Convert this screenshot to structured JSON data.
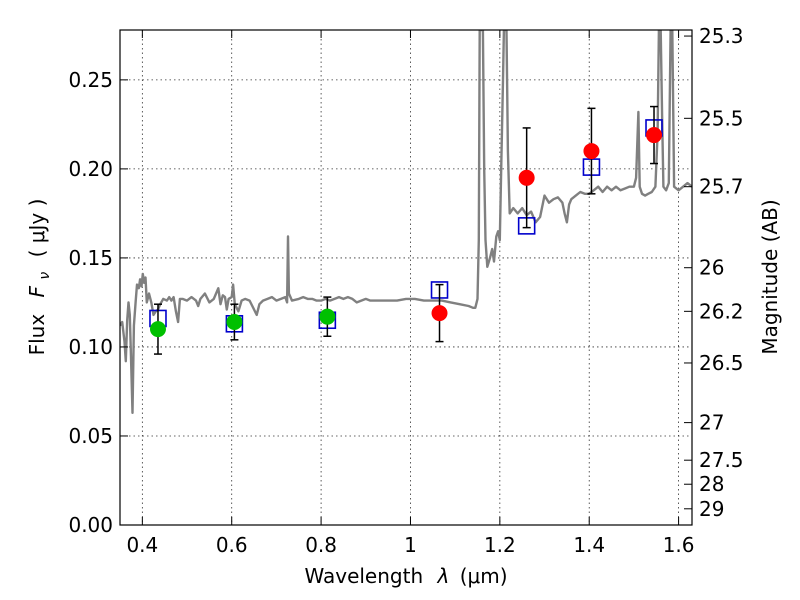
{
  "chart_data": {
    "type": "scatter",
    "xlabel_text": "Wavelength",
    "xlabel_symbol": "λ",
    "xlabel_unit": "(μm)",
    "ylabel_text": "Flux",
    "ylabel_symbol": "F",
    "ylabel_subscript": "ν",
    "ylabel_unit": "( μJy )",
    "y2label": "Magnitude (AB)",
    "xlim": [
      0.35,
      1.63
    ],
    "ylim": [
      0.0,
      0.278
    ],
    "grid": true,
    "x_ticks": [
      {
        "value": 0.4,
        "label": "0.4"
      },
      {
        "value": 0.6,
        "label": "0.6"
      },
      {
        "value": 0.8,
        "label": "0.8"
      },
      {
        "value": 1.0,
        "label": "1"
      },
      {
        "value": 1.2,
        "label": "1.2"
      },
      {
        "value": 1.4,
        "label": "1.4"
      },
      {
        "value": 1.6,
        "label": "1.6"
      }
    ],
    "y_ticks": [
      {
        "value": 0.0,
        "label": "0.00"
      },
      {
        "value": 0.05,
        "label": "0.05"
      },
      {
        "value": 0.1,
        "label": "0.10"
      },
      {
        "value": 0.15,
        "label": "0.15"
      },
      {
        "value": 0.2,
        "label": "0.20"
      },
      {
        "value": 0.25,
        "label": "0.25"
      }
    ],
    "y2_ticks": [
      {
        "flux": 0.2746,
        "label": "25.3"
      },
      {
        "flux": 0.2284,
        "label": "25.5"
      },
      {
        "flux": 0.19,
        "label": "25.7"
      },
      {
        "flux": 0.1445,
        "label": "26"
      },
      {
        "flux": 0.12,
        "label": "26.2"
      },
      {
        "flux": 0.091,
        "label": "26.5"
      },
      {
        "flux": 0.0575,
        "label": "27"
      },
      {
        "flux": 0.0364,
        "label": "27.5"
      },
      {
        "flux": 0.0229,
        "label": "28"
      },
      {
        "flux": 0.0091,
        "label": "29"
      }
    ],
    "colors": {
      "model": "#808080",
      "observed_optical": "#00c000",
      "observed_nir": "#ff0000",
      "model_photometry": "#0000cc",
      "errorbar": "#000000"
    },
    "series": [
      {
        "kind": "model_photometry_squares",
        "points": [
          {
            "x": 0.435,
            "y": 0.116
          },
          {
            "x": 0.606,
            "y": 0.113
          },
          {
            "x": 0.814,
            "y": 0.115
          },
          {
            "x": 1.065,
            "y": 0.132
          },
          {
            "x": 1.26,
            "y": 0.168
          },
          {
            "x": 1.405,
            "y": 0.201
          },
          {
            "x": 1.545,
            "y": 0.223
          }
        ]
      },
      {
        "kind": "observed_optical",
        "points": [
          {
            "x": 0.435,
            "y": 0.11,
            "err": 0.014
          },
          {
            "x": 0.606,
            "y": 0.114,
            "err": 0.01
          },
          {
            "x": 0.814,
            "y": 0.117,
            "err": 0.011
          }
        ]
      },
      {
        "kind": "observed_nir",
        "points": [
          {
            "x": 1.065,
            "y": 0.119,
            "err": 0.016
          },
          {
            "x": 1.26,
            "y": 0.195,
            "err": 0.028
          },
          {
            "x": 1.405,
            "y": 0.21,
            "err": 0.024
          },
          {
            "x": 1.545,
            "y": 0.219,
            "err": 0.016
          }
        ]
      }
    ],
    "model_spectrum": [
      [
        0.35,
        0.112
      ],
      [
        0.355,
        0.114
      ],
      [
        0.36,
        0.103
      ],
      [
        0.363,
        0.092
      ],
      [
        0.366,
        0.115
      ],
      [
        0.369,
        0.125
      ],
      [
        0.372,
        0.118
      ],
      [
        0.375,
        0.09
      ],
      [
        0.378,
        0.063
      ],
      [
        0.381,
        0.112
      ],
      [
        0.385,
        0.125
      ],
      [
        0.388,
        0.135
      ],
      [
        0.392,
        0.133
      ],
      [
        0.395,
        0.138
      ],
      [
        0.398,
        0.134
      ],
      [
        0.401,
        0.141
      ],
      [
        0.404,
        0.136
      ],
      [
        0.407,
        0.139
      ],
      [
        0.41,
        0.125
      ],
      [
        0.415,
        0.13
      ],
      [
        0.42,
        0.125
      ],
      [
        0.425,
        0.118
      ],
      [
        0.43,
        0.12
      ],
      [
        0.435,
        0.121
      ],
      [
        0.44,
        0.124
      ],
      [
        0.447,
        0.127
      ],
      [
        0.455,
        0.126
      ],
      [
        0.46,
        0.128
      ],
      [
        0.465,
        0.126
      ],
      [
        0.47,
        0.128
      ],
      [
        0.475,
        0.12
      ],
      [
        0.48,
        0.114
      ],
      [
        0.484,
        0.127
      ],
      [
        0.49,
        0.127
      ],
      [
        0.5,
        0.126
      ],
      [
        0.51,
        0.128
      ],
      [
        0.52,
        0.126
      ],
      [
        0.525,
        0.123
      ],
      [
        0.53,
        0.127
      ],
      [
        0.54,
        0.13
      ],
      [
        0.55,
        0.125
      ],
      [
        0.56,
        0.127
      ],
      [
        0.57,
        0.133
      ],
      [
        0.575,
        0.124
      ],
      [
        0.58,
        0.129
      ],
      [
        0.585,
        0.128
      ],
      [
        0.589,
        0.121
      ],
      [
        0.593,
        0.127
      ],
      [
        0.6,
        0.128
      ],
      [
        0.603,
        0.135
      ],
      [
        0.607,
        0.124
      ],
      [
        0.615,
        0.12
      ],
      [
        0.622,
        0.126
      ],
      [
        0.63,
        0.127
      ],
      [
        0.64,
        0.126
      ],
      [
        0.65,
        0.121
      ],
      [
        0.656,
        0.118
      ],
      [
        0.662,
        0.124
      ],
      [
        0.67,
        0.126
      ],
      [
        0.68,
        0.127
      ],
      [
        0.69,
        0.128
      ],
      [
        0.7,
        0.126
      ],
      [
        0.71,
        0.127
      ],
      [
        0.72,
        0.128
      ],
      [
        0.724,
        0.125
      ],
      [
        0.726,
        0.162
      ],
      [
        0.728,
        0.13
      ],
      [
        0.735,
        0.126
      ],
      [
        0.75,
        0.127
      ],
      [
        0.76,
        0.128
      ],
      [
        0.77,
        0.127
      ],
      [
        0.78,
        0.127
      ],
      [
        0.79,
        0.126
      ],
      [
        0.8,
        0.126
      ],
      [
        0.81,
        0.127
      ],
      [
        0.82,
        0.126
      ],
      [
        0.83,
        0.127
      ],
      [
        0.84,
        0.128
      ],
      [
        0.85,
        0.127
      ],
      [
        0.86,
        0.128
      ],
      [
        0.87,
        0.127
      ],
      [
        0.88,
        0.125
      ],
      [
        0.89,
        0.126
      ],
      [
        0.9,
        0.127
      ],
      [
        0.91,
        0.126
      ],
      [
        0.93,
        0.126
      ],
      [
        0.95,
        0.126
      ],
      [
        0.97,
        0.126
      ],
      [
        0.99,
        0.127
      ],
      [
        1.01,
        0.127
      ],
      [
        1.03,
        0.126
      ],
      [
        1.05,
        0.126
      ],
      [
        1.07,
        0.126
      ],
      [
        1.09,
        0.125
      ],
      [
        1.11,
        0.124
      ],
      [
        1.13,
        0.123
      ],
      [
        1.14,
        0.122
      ],
      [
        1.145,
        0.122
      ],
      [
        1.15,
        0.127
      ],
      [
        1.153,
        0.16
      ],
      [
        1.155,
        0.278
      ],
      [
        1.162,
        0.278
      ],
      [
        1.165,
        0.2
      ],
      [
        1.168,
        0.16
      ],
      [
        1.172,
        0.145
      ],
      [
        1.178,
        0.15
      ],
      [
        1.183,
        0.155
      ],
      [
        1.187,
        0.148
      ],
      [
        1.192,
        0.162
      ],
      [
        1.196,
        0.165
      ],
      [
        1.2,
        0.16
      ],
      [
        1.203,
        0.2
      ],
      [
        1.207,
        0.25
      ],
      [
        1.209,
        0.278
      ],
      [
        1.215,
        0.278
      ],
      [
        1.218,
        0.21
      ],
      [
        1.222,
        0.175
      ],
      [
        1.23,
        0.178
      ],
      [
        1.24,
        0.175
      ],
      [
        1.25,
        0.178
      ],
      [
        1.26,
        0.174
      ],
      [
        1.27,
        0.176
      ],
      [
        1.28,
        0.17
      ],
      [
        1.29,
        0.173
      ],
      [
        1.3,
        0.185
      ],
      [
        1.31,
        0.181
      ],
      [
        1.32,
        0.183
      ],
      [
        1.33,
        0.184
      ],
      [
        1.34,
        0.181
      ],
      [
        1.345,
        0.175
      ],
      [
        1.35,
        0.17
      ],
      [
        1.355,
        0.18
      ],
      [
        1.36,
        0.183
      ],
      [
        1.37,
        0.185
      ],
      [
        1.38,
        0.187
      ],
      [
        1.39,
        0.186
      ],
      [
        1.4,
        0.186
      ],
      [
        1.41,
        0.188
      ],
      [
        1.42,
        0.19
      ],
      [
        1.43,
        0.187
      ],
      [
        1.44,
        0.19
      ],
      [
        1.45,
        0.188
      ],
      [
        1.46,
        0.19
      ],
      [
        1.47,
        0.188
      ],
      [
        1.48,
        0.189
      ],
      [
        1.49,
        0.19
      ],
      [
        1.5,
        0.19
      ],
      [
        1.505,
        0.195
      ],
      [
        1.51,
        0.232
      ],
      [
        1.513,
        0.19
      ],
      [
        1.518,
        0.186
      ],
      [
        1.525,
        0.185
      ],
      [
        1.532,
        0.186
      ],
      [
        1.54,
        0.187
      ],
      [
        1.548,
        0.19
      ],
      [
        1.553,
        0.22
      ],
      [
        1.556,
        0.278
      ],
      [
        1.56,
        0.278
      ],
      [
        1.563,
        0.23
      ],
      [
        1.566,
        0.19
      ],
      [
        1.572,
        0.188
      ],
      [
        1.578,
        0.192
      ],
      [
        1.582,
        0.278
      ],
      [
        1.586,
        0.278
      ],
      [
        1.59,
        0.19
      ],
      [
        1.6,
        0.188
      ],
      [
        1.61,
        0.19
      ],
      [
        1.62,
        0.192
      ],
      [
        1.63,
        0.19
      ]
    ]
  }
}
